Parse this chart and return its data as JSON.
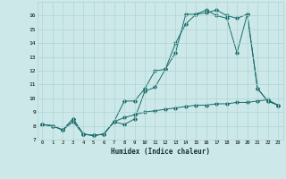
{
  "xlabel": "Humidex (Indice chaleur)",
  "bg_color": "#cce8e8",
  "line_color": "#1a6b6b",
  "grid_color": "#b0d4d4",
  "xlim": [
    -0.5,
    23.5
  ],
  "ylim": [
    7,
    17
  ],
  "xticks": [
    0,
    1,
    2,
    3,
    4,
    5,
    6,
    7,
    8,
    9,
    10,
    11,
    12,
    13,
    14,
    15,
    16,
    17,
    18,
    19,
    20,
    21,
    22,
    23
  ],
  "yticks": [
    7,
    8,
    9,
    10,
    11,
    12,
    13,
    14,
    15,
    16
  ],
  "series": [
    {
      "x": [
        0,
        1,
        2,
        3,
        4,
        5,
        6,
        7,
        8,
        9,
        10,
        11,
        12,
        13,
        14,
        15,
        16,
        17,
        18,
        19,
        20,
        21,
        22,
        23
      ],
      "y": [
        8.1,
        8.0,
        7.7,
        8.3,
        7.4,
        7.3,
        7.4,
        8.3,
        8.6,
        8.8,
        9.0,
        9.1,
        9.2,
        9.3,
        9.4,
        9.5,
        9.5,
        9.6,
        9.6,
        9.7,
        9.7,
        9.8,
        9.9,
        9.5
      ]
    },
    {
      "x": [
        0,
        1,
        2,
        3,
        4,
        5,
        6,
        7,
        8,
        9,
        10,
        11,
        12,
        13,
        14,
        15,
        16,
        17,
        18,
        19,
        20,
        21,
        22,
        23
      ],
      "y": [
        8.1,
        8.0,
        7.7,
        8.5,
        7.4,
        7.3,
        7.4,
        8.3,
        8.1,
        8.5,
        10.5,
        10.8,
        12.1,
        13.3,
        16.1,
        16.1,
        16.4,
        16.0,
        15.8,
        13.3,
        16.1,
        10.7,
        9.8,
        9.5
      ]
    },
    {
      "x": [
        0,
        1,
        2,
        3,
        4,
        5,
        6,
        7,
        8,
        9,
        10,
        11,
        12,
        13,
        14,
        15,
        16,
        17,
        18,
        19,
        20,
        21,
        22,
        23
      ],
      "y": [
        8.1,
        8.0,
        7.7,
        8.5,
        7.4,
        7.3,
        7.4,
        8.3,
        9.8,
        9.8,
        10.7,
        12.0,
        12.1,
        14.0,
        15.4,
        16.1,
        16.2,
        16.4,
        16.0,
        15.8,
        16.1,
        10.7,
        9.8,
        9.5
      ]
    }
  ]
}
